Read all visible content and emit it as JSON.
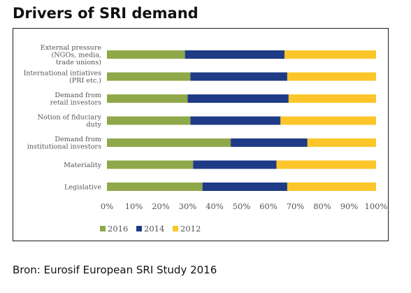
{
  "title": "Drivers of SRI demand",
  "source": "Bron: Eurosif European SRI Study 2016",
  "chart_data": {
    "type": "bar",
    "orientation": "horizontal",
    "stacked": true,
    "categories": [
      [
        "External pressure",
        "(NGOs, media,",
        "trade unions)"
      ],
      [
        "International intiatives",
        "(PRI etc.)"
      ],
      [
        "Demand from",
        "retail investors"
      ],
      [
        "Notion of fiduciary",
        "duty"
      ],
      [
        "Demand from",
        "institutional investors"
      ],
      [
        "Materiality"
      ],
      [
        "Legislative"
      ]
    ],
    "series": [
      {
        "name": "2016",
        "color": "#8fa84a",
        "values": [
          29,
          31,
          30,
          31,
          46,
          32,
          35.5
        ]
      },
      {
        "name": "2014",
        "color": "#1f3b86",
        "values": [
          37,
          36,
          37.5,
          33.5,
          28.5,
          31,
          31.5
        ]
      },
      {
        "name": "2012",
        "color": "#fcc62a",
        "values": [
          34,
          33,
          32.5,
          35.5,
          25.5,
          37,
          33
        ]
      }
    ],
    "xlim": [
      0,
      100
    ],
    "x_ticks": [
      "0%",
      "10%",
      "20%",
      "30%",
      "40%",
      "50%",
      "60%",
      "70%",
      "80%",
      "90%",
      "100%"
    ],
    "x_tick_values": [
      0,
      10,
      20,
      30,
      40,
      50,
      60,
      70,
      80,
      90,
      100
    ],
    "legend": "bottom-left",
    "grid": false
  }
}
